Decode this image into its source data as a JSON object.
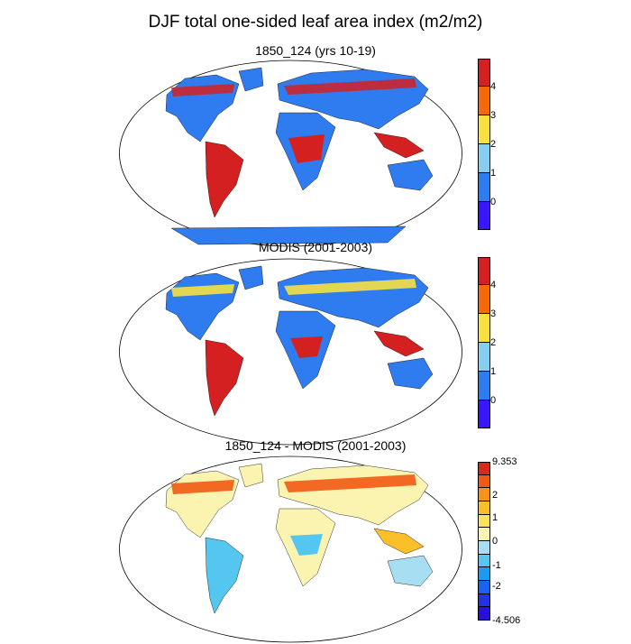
{
  "title": "DJF total one-sided leaf area index (m2/m2)",
  "panels": [
    {
      "title": "1850_124 (yrs 10-19)",
      "colorbar": {
        "colors": [
          "#3a16ff",
          "#2f7bf0",
          "#86cdf0",
          "#f7e040",
          "#f46a0a",
          "#d42020"
        ],
        "labels": [
          "0",
          "1",
          "2",
          "3",
          "4"
        ]
      }
    },
    {
      "title": "MODIS (2001-2003)",
      "colorbar": {
        "colors": [
          "#3a16ff",
          "#2f7bf0",
          "#86cdf0",
          "#f7e040",
          "#f46a0a",
          "#d42020"
        ],
        "labels": [
          "0",
          "1",
          "2",
          "3",
          "4"
        ]
      }
    },
    {
      "title": "1850_124 - MODIS (2001-2003)",
      "colorbar": {
        "colors": [
          "#2a0fd8",
          "#2233e6",
          "#1c62f0",
          "#1d9bf0",
          "#54c6f0",
          "#a8def2",
          "#fbf4b0",
          "#fae35a",
          "#fbbf2a",
          "#f8921a",
          "#ef5a14",
          "#d22d1a"
        ],
        "labels": [
          "-4.506",
          "-2",
          "-1",
          "0",
          "1",
          "2",
          "9.353"
        ]
      }
    }
  ]
}
